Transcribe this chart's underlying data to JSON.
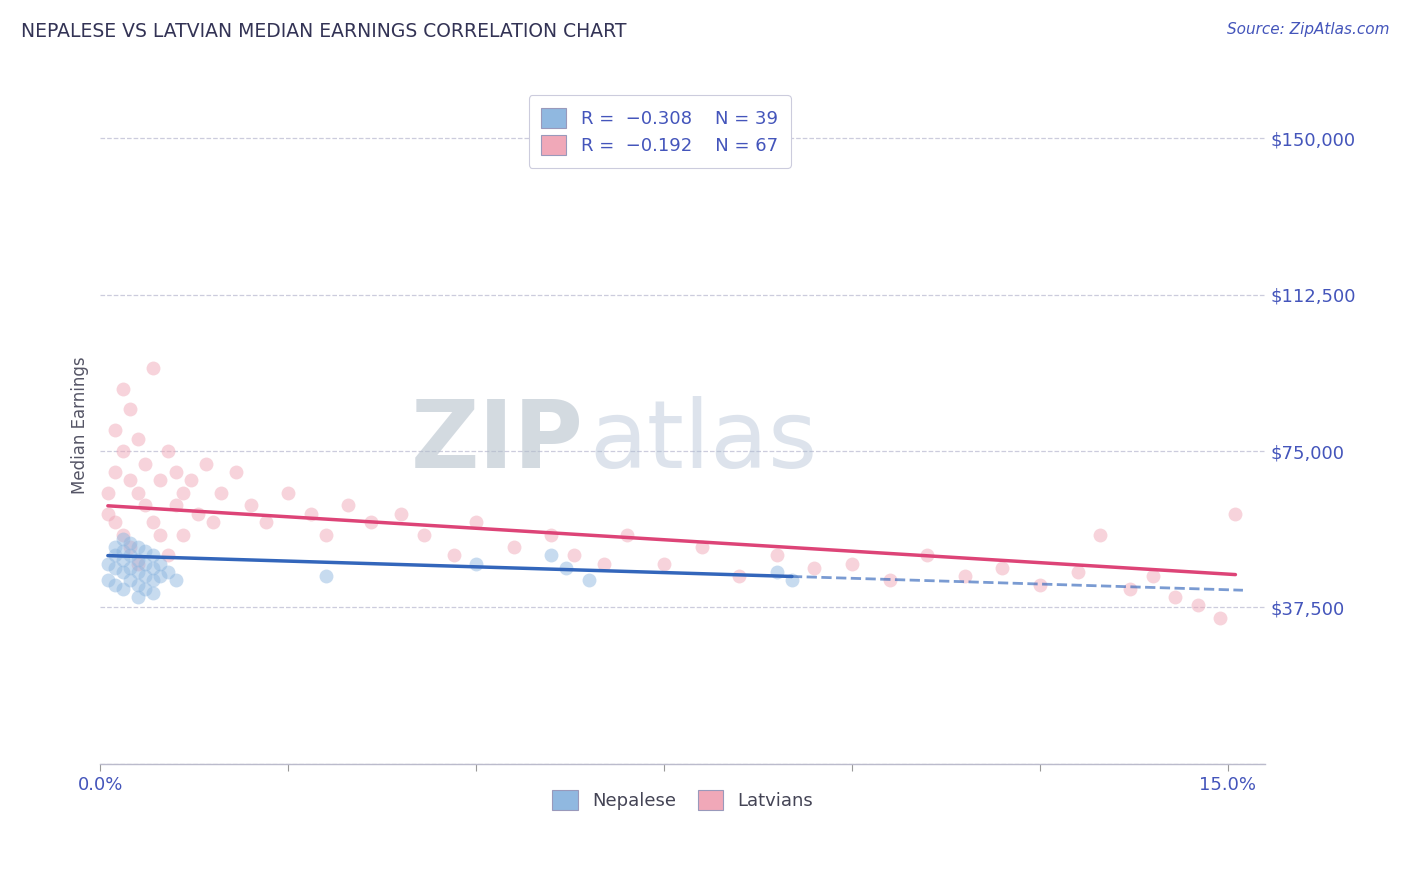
{
  "title": "NEPALESE VS LATVIAN MEDIAN EARNINGS CORRELATION CHART",
  "source_text": "Source: ZipAtlas.com",
  "ylabel": "Median Earnings",
  "xlim": [
    0.0,
    0.155
  ],
  "ylim": [
    0,
    162500
  ],
  "yticks": [
    0,
    37500,
    75000,
    112500,
    150000
  ],
  "ytick_labels": [
    "",
    "$37,500",
    "$75,000",
    "$112,500",
    "$150,000"
  ],
  "xticks": [
    0.0,
    0.025,
    0.05,
    0.075,
    0.1,
    0.125,
    0.15
  ],
  "xtick_labels": [
    "0.0%",
    "",
    "",
    "",
    "",
    "",
    "15.0%"
  ],
  "legend_blue_R": "R = −0.308",
  "legend_blue_N": "N = 39",
  "legend_pink_R": "R = −0.192",
  "legend_pink_N": "N = 67",
  "blue_color": "#90b8e0",
  "pink_color": "#f0a8b8",
  "blue_line_color": "#3366bb",
  "pink_line_color": "#dd4477",
  "axis_label_color": "#4455bb",
  "background_color": "#ffffff",
  "grid_color": "#ccccdd",
  "title_color": "#333355",
  "nepalese_x": [
    0.001,
    0.001,
    0.002,
    0.002,
    0.002,
    0.002,
    0.003,
    0.003,
    0.003,
    0.003,
    0.003,
    0.004,
    0.004,
    0.004,
    0.004,
    0.005,
    0.005,
    0.005,
    0.005,
    0.005,
    0.006,
    0.006,
    0.006,
    0.006,
    0.007,
    0.007,
    0.007,
    0.007,
    0.008,
    0.008,
    0.009,
    0.01,
    0.03,
    0.05,
    0.06,
    0.062,
    0.065,
    0.09,
    0.092
  ],
  "nepalese_y": [
    48000,
    44000,
    52000,
    50000,
    47000,
    43000,
    54000,
    51000,
    49000,
    46000,
    42000,
    53000,
    50000,
    47000,
    44000,
    52000,
    49000,
    46000,
    43000,
    40000,
    51000,
    48000,
    45000,
    42000,
    50000,
    47000,
    44000,
    41000,
    48000,
    45000,
    46000,
    44000,
    45000,
    48000,
    50000,
    47000,
    44000,
    46000,
    44000
  ],
  "latvian_x": [
    0.001,
    0.001,
    0.002,
    0.002,
    0.002,
    0.003,
    0.003,
    0.003,
    0.004,
    0.004,
    0.004,
    0.005,
    0.005,
    0.005,
    0.006,
    0.006,
    0.007,
    0.007,
    0.008,
    0.008,
    0.009,
    0.009,
    0.01,
    0.01,
    0.011,
    0.011,
    0.012,
    0.013,
    0.014,
    0.015,
    0.016,
    0.018,
    0.02,
    0.022,
    0.025,
    0.028,
    0.03,
    0.033,
    0.036,
    0.04,
    0.043,
    0.047,
    0.05,
    0.055,
    0.06,
    0.063,
    0.067,
    0.07,
    0.075,
    0.08,
    0.085,
    0.09,
    0.095,
    0.1,
    0.105,
    0.11,
    0.115,
    0.12,
    0.125,
    0.13,
    0.133,
    0.137,
    0.14,
    0.143,
    0.146,
    0.149,
    0.151
  ],
  "latvian_y": [
    65000,
    60000,
    80000,
    70000,
    58000,
    90000,
    75000,
    55000,
    85000,
    68000,
    52000,
    78000,
    65000,
    48000,
    72000,
    62000,
    95000,
    58000,
    68000,
    55000,
    75000,
    50000,
    70000,
    62000,
    65000,
    55000,
    68000,
    60000,
    72000,
    58000,
    65000,
    70000,
    62000,
    58000,
    65000,
    60000,
    55000,
    62000,
    58000,
    60000,
    55000,
    50000,
    58000,
    52000,
    55000,
    50000,
    48000,
    55000,
    48000,
    52000,
    45000,
    50000,
    47000,
    48000,
    44000,
    50000,
    45000,
    47000,
    43000,
    46000,
    55000,
    42000,
    45000,
    40000,
    38000,
    35000,
    60000
  ],
  "blue_line_x0": 0.001,
  "blue_line_x_solid_end": 0.092,
  "blue_line_x_dash_end": 0.152,
  "blue_line_y0": 50000,
  "blue_line_slope": -55000,
  "pink_line_x0": 0.001,
  "pink_line_x_end": 0.151,
  "pink_line_y0": 62000,
  "pink_line_slope": -110000,
  "dot_size": 100,
  "dot_alpha": 0.5,
  "watermark_text": "ZIPatlas",
  "watermark_color": "#c5d5e5",
  "watermark_alpha": 0.45
}
